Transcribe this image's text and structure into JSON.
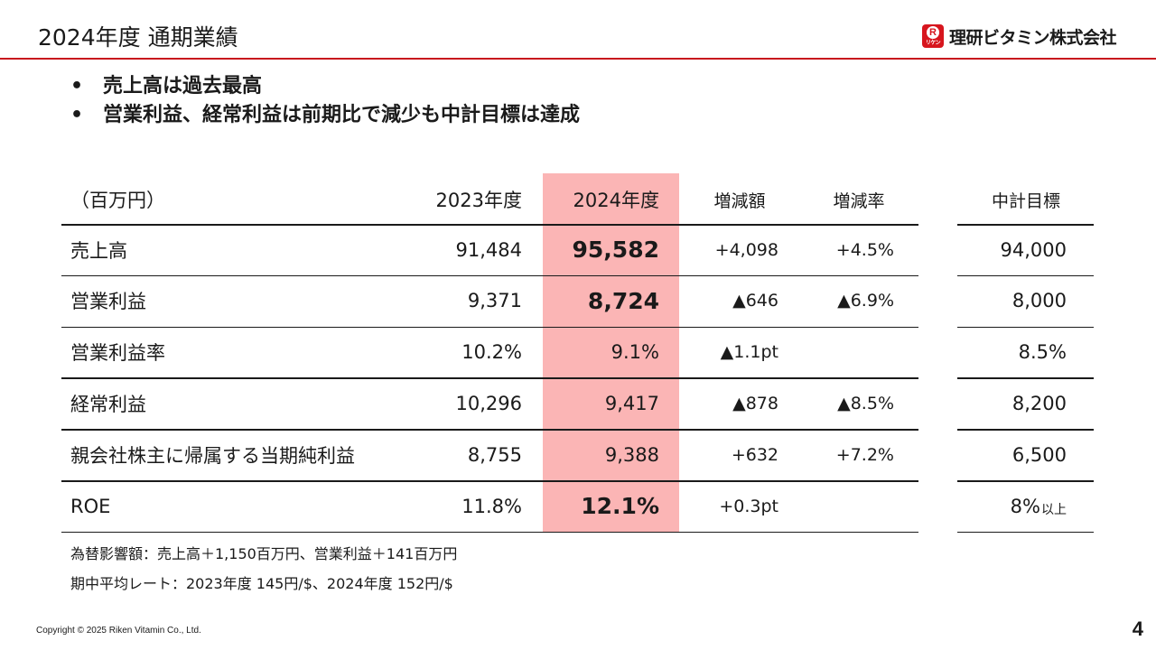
{
  "header": {
    "title": "2024年度 通期業績",
    "logo": {
      "mark_letter": "R",
      "mark_sub": "リケン",
      "text": "理研ビタミン株式会社"
    }
  },
  "bullets": [
    "売上高は過去最高",
    "営業利益、経常利益は前期比で減少も中計目標は達成"
  ],
  "bullet_symbol": "•",
  "table": {
    "unit_label": "（百万円）",
    "columns": [
      "2023年度",
      "2024年度",
      "増減額",
      "増減率",
      "中計目標"
    ],
    "highlight_color": "#fbb5b5",
    "rows": [
      {
        "label": "売上高",
        "y2023": "91,484",
        "y2024": "95,582",
        "diff": "+4,098",
        "rate": "+4.5%",
        "target": "94,000",
        "target_suffix": "",
        "bold_2024": true
      },
      {
        "label": "営業利益",
        "y2023": "9,371",
        "y2024": "8,724",
        "diff": "▲646",
        "rate": "▲6.9%",
        "target": "8,000",
        "target_suffix": "",
        "bold_2024": true
      },
      {
        "label": "営業利益率",
        "y2023": "10.2%",
        "y2024": "9.1%",
        "diff": "▲1.1pt",
        "rate": "",
        "target": "8.5%",
        "target_suffix": "",
        "bold_2024": false
      },
      {
        "label": "経常利益",
        "y2023": "10,296",
        "y2024": "9,417",
        "diff": "▲878",
        "rate": "▲8.5%",
        "target": "8,200",
        "target_suffix": "",
        "bold_2024": false
      },
      {
        "label": "親会社株主に帰属する当期純利益",
        "y2023": "8,755",
        "y2024": "9,388",
        "diff": "+632",
        "rate": "+7.2%",
        "target": "6,500",
        "target_suffix": "",
        "bold_2024": false
      },
      {
        "label": "ROE",
        "y2023": "11.8%",
        "y2024": "12.1%",
        "diff": "+0.3pt",
        "rate": "",
        "target": "8%",
        "target_suffix": "以上",
        "bold_2024": true
      }
    ]
  },
  "notes": [
    "為替影響額：売上高＋1,150百万円、営業利益＋141百万円",
    "期中平均レート：2023年度 145円/$、2024年度 152円/$"
  ],
  "footer": {
    "copyright": "Copyright © 2025 Riken Vitamin Co., Ltd.",
    "page_number": "4"
  },
  "colors": {
    "accent": "#c8161d",
    "logo_red": "#d7161e",
    "highlight": "#fbb5b5"
  }
}
